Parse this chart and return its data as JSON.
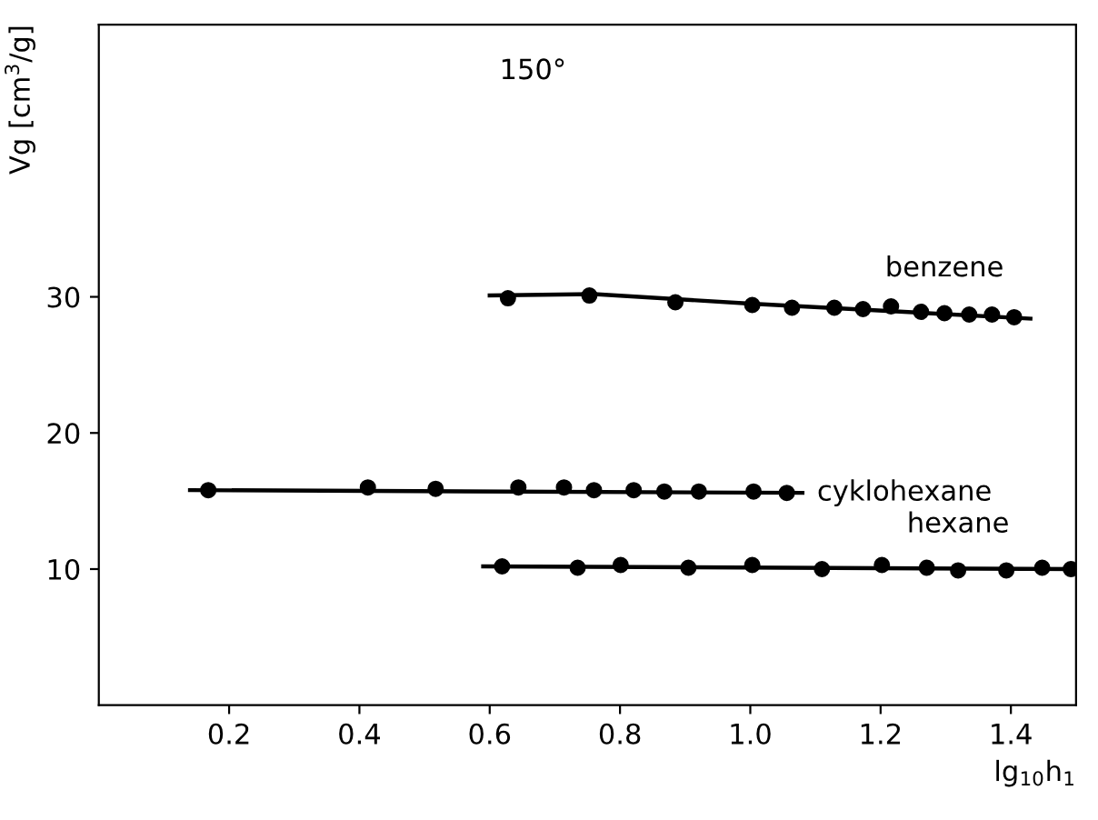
{
  "chart_data": {
    "type": "scatter",
    "xlabel": "lg$_{10}$h$_{1}$",
    "ylabel": "Vg [cm$^{3}$/g]",
    "annotations": [
      "150°"
    ],
    "xlim": [
      0,
      1.5
    ],
    "ylim": [
      0,
      50
    ],
    "xticks": [
      0.2,
      0.4,
      0.6,
      0.8,
      {
        "value": 1.0,
        "label": "1.0"
      },
      1.2,
      1.4
    ],
    "yticks": [
      10,
      20,
      30
    ],
    "grid": false,
    "legend": false,
    "marker": "circle",
    "series": [
      {
        "name": "benzene",
        "color": "#000000",
        "x": [
          0.628,
          0.753,
          0.885,
          1.003,
          1.064,
          1.129,
          1.173,
          1.216,
          1.262,
          1.298,
          1.336,
          1.371,
          1.405
        ],
        "values": [
          29.9,
          30.1,
          29.6,
          29.4,
          29.2,
          29.2,
          29.1,
          29.3,
          28.9,
          28.8,
          28.7,
          28.7,
          28.5
        ]
      },
      {
        "name": "cyklohexane",
        "color": "#000000",
        "x": [
          0.168,
          0.413,
          0.517,
          0.644,
          0.714,
          0.76,
          0.821,
          0.868,
          0.921,
          1.005,
          1.056
        ],
        "values": [
          15.8,
          16.0,
          15.9,
          16.0,
          16.0,
          15.8,
          15.8,
          15.7,
          15.7,
          15.7,
          15.6
        ]
      },
      {
        "name": "hexane",
        "color": "#000000",
        "x": [
          0.619,
          0.735,
          0.801,
          0.905,
          1.003,
          1.11,
          1.202,
          1.271,
          1.319,
          1.393,
          1.448,
          1.492
        ],
        "values": [
          10.2,
          10.1,
          10.3,
          10.1,
          10.3,
          10.0,
          10.3,
          10.1,
          9.9,
          9.9,
          10.1,
          10.0
        ]
      },
      {
        "type": "line",
        "color": "#000000",
        "marker": "none",
        "x": [
          0.6,
          0.76,
          1.0,
          1.43
        ],
        "values": [
          30.1,
          30.2,
          29.5,
          28.4
        ]
      },
      {
        "type": "line",
        "color": "#000000",
        "marker": "none",
        "x": [
          0.14,
          1.08
        ],
        "values": [
          15.8,
          15.6
        ]
      },
      {
        "type": "line",
        "color": "#000000",
        "marker": "none",
        "x": [
          0.59,
          1.5
        ],
        "values": [
          10.2,
          10.0
        ]
      }
    ]
  }
}
